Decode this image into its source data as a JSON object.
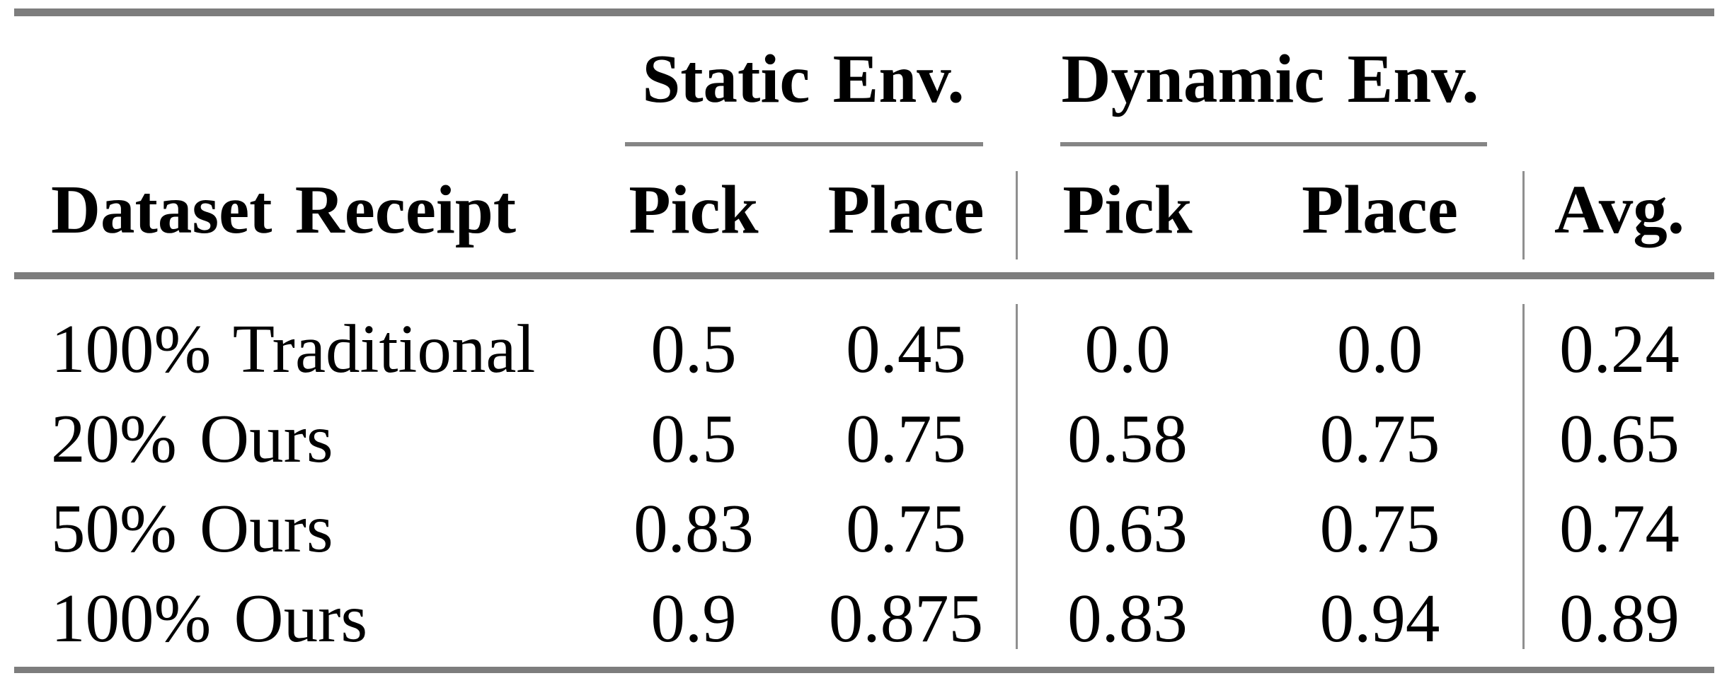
{
  "table": {
    "corner_header": "Dataset Receipt",
    "column_groups": [
      {
        "label": "Static Env.",
        "columns": [
          "Pick",
          "Place"
        ]
      },
      {
        "label": "Dynamic Env.",
        "columns": [
          "Pick",
          "Place"
        ]
      }
    ],
    "avg_header": "Avg.",
    "rows": [
      {
        "label": "100% Traditional",
        "values": [
          "0.5",
          "0.45",
          "0.0",
          "0.0",
          "0.24"
        ]
      },
      {
        "label": "20% Ours",
        "values": [
          "0.5",
          "0.75",
          "0.58",
          "0.75",
          "0.65"
        ]
      },
      {
        "label": "50% Ours",
        "values": [
          "0.83",
          "0.75",
          "0.63",
          "0.75",
          "0.74"
        ]
      },
      {
        "label": "100% Ours",
        "values": [
          "0.9",
          "0.875",
          "0.83",
          "0.94",
          "0.89"
        ]
      }
    ],
    "colors": {
      "text": "#000000",
      "background": "#ffffff",
      "heavy_rule": "#7d7d7d",
      "cmidrule": "#858585",
      "column_separator": "#8f8f8f"
    }
  }
}
